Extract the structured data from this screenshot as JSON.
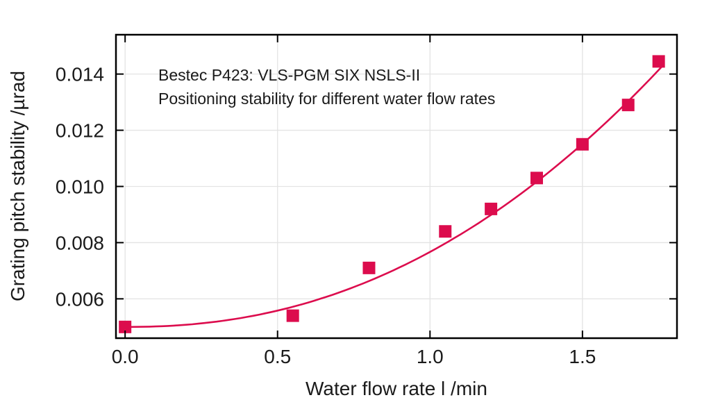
{
  "chart_data": {
    "type": "scatter",
    "title": "Bestec P423: VLS-PGM SIX NSLS-II",
    "subtitle": "Positioning stability for different water flow rates",
    "xlabel": "Water flow rate l /min",
    "ylabel": "Grating pitch stability /µrad",
    "xlim": [
      -0.03,
      1.81
    ],
    "ylim": [
      0.0046,
      0.0154
    ],
    "grid": true,
    "legend": "none",
    "x_ticks": [
      {
        "value": 0.0,
        "label": "0.0"
      },
      {
        "value": 0.5,
        "label": "0.5"
      },
      {
        "value": 1.0,
        "label": "1.0"
      },
      {
        "value": 1.5,
        "label": "1.5"
      }
    ],
    "y_ticks": [
      {
        "value": 0.006,
        "label": "0.006"
      },
      {
        "value": 0.008,
        "label": "0.008"
      },
      {
        "value": 0.01,
        "label": "0.010"
      },
      {
        "value": 0.012,
        "label": "0.012"
      },
      {
        "value": 0.014,
        "label": "0.014"
      }
    ],
    "series": [
      {
        "name": "data-points",
        "type": "scatter",
        "marker": "filled-square",
        "marker_size": 18,
        "points": [
          {
            "x": 0.0,
            "y": 0.005
          },
          {
            "x": 0.55,
            "y": 0.0054
          },
          {
            "x": 0.8,
            "y": 0.0071
          },
          {
            "x": 1.05,
            "y": 0.0084
          },
          {
            "x": 1.2,
            "y": 0.0092
          },
          {
            "x": 1.35,
            "y": 0.0103
          },
          {
            "x": 1.5,
            "y": 0.0115
          },
          {
            "x": 1.65,
            "y": 0.0129
          },
          {
            "x": 1.75,
            "y": 0.01445
          }
        ]
      },
      {
        "name": "fit-line",
        "type": "line",
        "fit": {
          "model": "y = y0 + a*x^b",
          "y0": 0.005,
          "a": 0.00267,
          "b": 2.2,
          "x_min": 0.0,
          "x_max": 1.76
        }
      }
    ],
    "colors": {
      "marker": "#dc0c4d",
      "line": "#dc0c4d",
      "grid": "#e3e3e3",
      "axis": "#000000",
      "text": "#1a1a1a"
    }
  }
}
